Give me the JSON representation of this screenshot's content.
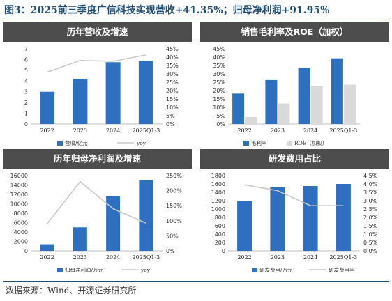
{
  "figure_title": "图3：2025前三季度广信科技实现营收+41.35%；归母净利润+91.95%",
  "source": "数据来源：Wind、开源证券研究所",
  "colors": {
    "bar_blue": "#2e6fc0",
    "bar_gray": "#d9d9d9",
    "line_gray": "#c8c8c8",
    "header": "#4d4d4d",
    "title_blue": "#1f4e79"
  },
  "chart_data": [
    {
      "type": "bar",
      "title": "历年营收及增速",
      "categories": [
        "2022",
        "2023",
        "2024",
        "2025Q1-3"
      ],
      "series": [
        {
          "name": "营收/亿元",
          "kind": "bar",
          "axis": "left",
          "values": [
            3.0,
            4.2,
            5.75,
            5.85
          ]
        },
        {
          "name": "yoy",
          "kind": "line",
          "axis": "right",
          "values": [
            31,
            38,
            37.5,
            41.35
          ]
        }
      ],
      "left_axis": {
        "ylim": [
          0,
          7
        ],
        "ticks": [
          "0",
          "1",
          "2",
          "3",
          "4",
          "5",
          "6",
          "7"
        ]
      },
      "right_axis": {
        "ylim": [
          0,
          45
        ],
        "ticks": [
          "0%",
          "5%",
          "10%",
          "15%",
          "20%",
          "25%",
          "30%",
          "35%",
          "40%",
          "45%"
        ]
      },
      "legend_position": "bottom"
    },
    {
      "type": "bar",
      "title": "销售毛利率及ROE（加权）",
      "categories": [
        "2022",
        "2023",
        "2024",
        "2025Q1-3"
      ],
      "series": [
        {
          "name": "毛利率",
          "kind": "bar",
          "values": [
            18.2,
            26.3,
            33.7,
            39.3
          ]
        },
        {
          "name": "ROE（加权）",
          "kind": "bar",
          "values": [
            4.2,
            12.3,
            22.8,
            23.5
          ]
        }
      ],
      "left_axis": {
        "ylim": [
          0,
          45
        ],
        "ticks": [
          "0%",
          "5%",
          "10%",
          "15%",
          "20%",
          "25%",
          "30%",
          "35%",
          "40%",
          "45%"
        ]
      },
      "legend_position": "bottom"
    },
    {
      "type": "bar",
      "title": "历年归母净利润及增速",
      "categories": [
        "2022",
        "2023",
        "2024",
        "2025Q1-3"
      ],
      "series": [
        {
          "name": "归母净利润/万元",
          "kind": "bar",
          "axis": "left",
          "values": [
            1400,
            5000,
            11600,
            15000
          ]
        },
        {
          "name": "yoy",
          "kind": "line",
          "axis": "right",
          "values": [
            90,
            230,
            140,
            92
          ]
        }
      ],
      "left_axis": {
        "ylim": [
          0,
          16000
        ],
        "ticks": [
          "0",
          "2000",
          "4000",
          "6000",
          "8000",
          "10000",
          "12000",
          "14000",
          "16000"
        ]
      },
      "right_axis": {
        "ylim": [
          0,
          250
        ],
        "ticks": [
          "0%",
          "50%",
          "100%",
          "150%",
          "200%",
          "250%"
        ]
      },
      "legend_position": "bottom"
    },
    {
      "type": "bar",
      "title": "研发费用占比",
      "categories": [
        "2022",
        "2023",
        "2024",
        "2025Q1-3"
      ],
      "series": [
        {
          "name": "研发费用/万元",
          "kind": "bar",
          "axis": "left",
          "values": [
            1200,
            1520,
            1550,
            1600
          ]
        },
        {
          "name": "研发费用率",
          "kind": "line",
          "axis": "right",
          "values": [
            3.95,
            3.6,
            2.7,
            2.7
          ]
        }
      ],
      "left_axis": {
        "ylim": [
          0,
          1800
        ],
        "ticks": [
          "0",
          "200",
          "400",
          "600",
          "800",
          "1000",
          "1200",
          "1400",
          "1600",
          "1800"
        ]
      },
      "right_axis": {
        "ylim": [
          0,
          4.5
        ],
        "ticks": [
          "0.0%",
          "0.5%",
          "1.0%",
          "1.5%",
          "2.0%",
          "2.5%",
          "3.0%",
          "3.5%",
          "4.0%",
          "4.5%"
        ]
      },
      "legend_position": "bottom"
    }
  ]
}
